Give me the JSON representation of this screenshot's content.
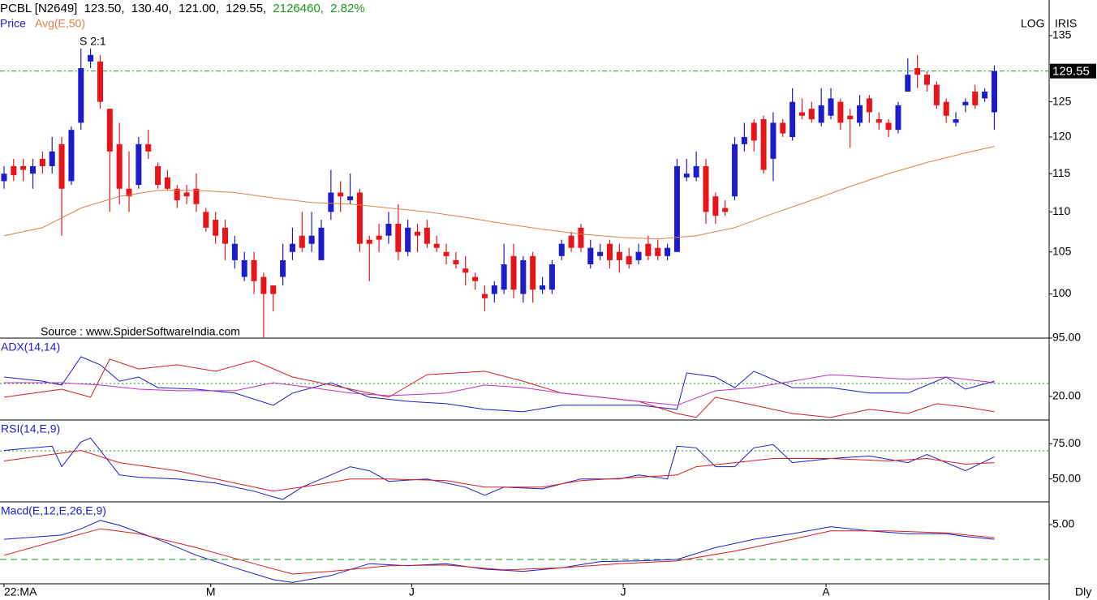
{
  "header": {
    "symbol": "PCBL [N2649]",
    "open": "123.50,",
    "high": "130.40,",
    "low": "121.00,",
    "close": "129.55,",
    "volume": "2126460,",
    "change": "2.82%",
    "scale": "LOG",
    "brand": "IRIS",
    "period": "Dly",
    "source": "Source : www.SpiderSoftwareIndia.com",
    "annotation": "S 2:1"
  },
  "chart_data": [
    {
      "type": "candlestick",
      "name": "Price",
      "log": true,
      "up_color": "#1c1ccc",
      "down_color": "#e8141a",
      "xlim": [
        -0.42,
        108.7
      ],
      "ylim": [
        95,
        140.7
      ],
      "yticks": [
        135,
        125,
        120,
        115,
        110,
        105,
        100,
        {
          "value": 95,
          "label": "95.00"
        }
      ],
      "xticks": [
        {
          "value": 0,
          "label": "22:MA"
        },
        {
          "value": 21.5,
          "label": "M"
        },
        {
          "value": 42.4,
          "label": "J"
        },
        {
          "value": 64.4,
          "label": "J"
        },
        {
          "value": 85.5,
          "label": "A"
        }
      ],
      "open": [
        114,
        116,
        116,
        115,
        117,
        116,
        119,
        114,
        122,
        131,
        131,
        124,
        119,
        113,
        113.5,
        119,
        116,
        114.5,
        113,
        112.5,
        113,
        110,
        109,
        108,
        104,
        102,
        104,
        102,
        101,
        102,
        105,
        107,
        106,
        104,
        110,
        112.5,
        111.5,
        112.5,
        106.5,
        107,
        107,
        108.5,
        105,
        107.5,
        108,
        106,
        105,
        104,
        103,
        102,
        100,
        100,
        100.5,
        104.5,
        100,
        104.5,
        100.5,
        100.5,
        104.5,
        107,
        108,
        103.5,
        104.5,
        106,
        105,
        104.5,
        104,
        106,
        105.5,
        104.5,
        105,
        114.5,
        114.5,
        116,
        112,
        110.5,
        112,
        119,
        122,
        122.5,
        117,
        122,
        120,
        123.5,
        124,
        122,
        123,
        125,
        123,
        122,
        125.5,
        122.5,
        122,
        121,
        126.5,
        130,
        129,
        127.5,
        125,
        122,
        124.5,
        126.5,
        125.5,
        123.5
      ],
      "high": [
        116,
        117,
        117,
        117,
        118,
        120,
        120,
        121.5,
        133,
        133,
        132,
        124,
        122,
        118,
        120,
        121,
        116.5,
        115.5,
        113.5,
        113.5,
        115,
        110.5,
        110,
        109,
        107,
        105,
        105,
        102.5,
        101,
        106,
        108,
        110,
        110,
        109,
        115.5,
        114,
        115,
        113,
        107,
        108.5,
        110,
        111,
        109,
        108.5,
        109,
        107,
        106,
        105,
        104.5,
        102.5,
        101,
        101.5,
        106,
        106,
        104.5,
        105,
        102,
        104,
        106.5,
        107.5,
        108.5,
        106.5,
        106,
        106.5,
        106,
        105.5,
        106,
        107,
        106.5,
        106,
        117,
        117,
        118,
        117,
        112.5,
        111.5,
        120,
        122,
        122.5,
        123,
        123.5,
        122.5,
        127,
        125.5,
        125,
        127,
        127,
        125.5,
        124,
        126,
        126,
        123.5,
        122.5,
        125,
        131.5,
        132,
        129.5,
        128,
        125.5,
        123.5,
        125.5,
        127.5,
        127,
        130.4
      ],
      "low": [
        113,
        114,
        114,
        113,
        115,
        115,
        107,
        113.5,
        121,
        130,
        124,
        110,
        111,
        110,
        113,
        117,
        113,
        112.8,
        110.5,
        111,
        110,
        107.5,
        106,
        104,
        103,
        101.5,
        100,
        95,
        98,
        101,
        104,
        105,
        105,
        104,
        109,
        110,
        111,
        105,
        101.5,
        105,
        106,
        104,
        104.5,
        105,
        105.5,
        105,
        103.5,
        103,
        101,
        100.5,
        98,
        99,
        100,
        99.5,
        99,
        99,
        100,
        100,
        104,
        105,
        105,
        103,
        104,
        103,
        102.5,
        103,
        103.5,
        104,
        104,
        104,
        105,
        114,
        114,
        108.5,
        108.5,
        109.5,
        111.5,
        118,
        118,
        115,
        114,
        120,
        119.5,
        122.5,
        122,
        121.5,
        122.5,
        121,
        118.5,
        121.5,
        122,
        121,
        120,
        120.5,
        126.5,
        127,
        126.5,
        124,
        122,
        121.5,
        123.5,
        124,
        125,
        121
      ],
      "close": [
        115,
        114.8,
        115.5,
        116,
        116,
        118,
        113,
        121,
        130,
        132,
        125,
        118,
        113,
        112,
        119,
        118,
        113.5,
        113,
        111.5,
        112,
        111,
        108,
        107,
        106,
        106,
        104,
        101.5,
        100,
        100,
        104,
        106,
        105.5,
        107,
        108,
        112.5,
        112,
        112,
        106,
        106,
        106.5,
        108.5,
        105,
        108,
        107,
        106,
        105.5,
        104.5,
        103.5,
        102.5,
        101.5,
        99.5,
        101,
        103.5,
        100.5,
        104,
        100.5,
        101,
        103.5,
        106,
        105.5,
        105.5,
        105.5,
        105,
        104,
        104,
        103.5,
        105,
        104.5,
        104.5,
        105.5,
        116,
        115,
        116,
        110,
        109.5,
        110,
        119,
        120,
        119.5,
        115.5,
        122,
        120.5,
        125,
        123,
        122.5,
        124.5,
        125.5,
        122,
        122.5,
        124.5,
        123.5,
        122,
        121,
        124.5,
        129,
        129,
        127.5,
        124.5,
        123,
        122.5,
        125,
        124.5,
        126.5,
        129.55
      ],
      "series": [
        {
          "name": "Avg(E,50)",
          "color": "#e0804a",
          "x": [
            0,
            4,
            8,
            12,
            16,
            20,
            24,
            28,
            32,
            36,
            40,
            44,
            48,
            52,
            56,
            60,
            64,
            68,
            72,
            76,
            80,
            84,
            88,
            92,
            96,
            100,
            103
          ],
          "values": [
            107,
            108,
            110.5,
            112,
            112.8,
            112.8,
            112.5,
            111.8,
            111.2,
            111,
            110.5,
            110,
            109.3,
            108.5,
            107.8,
            107.2,
            106.8,
            106.6,
            107,
            108,
            109.8,
            111.5,
            113.3,
            115,
            116.5,
            117.8,
            118.7
          ]
        }
      ]
    },
    {
      "type": "line",
      "title": "ADX(14,14)",
      "xlim": [
        -0.42,
        108.7
      ],
      "ylim": [
        10.9,
        42.2
      ],
      "yticks": [
        {
          "value": 20,
          "label": "20.00"
        }
      ],
      "ref_line": 25,
      "ref_color": "#1a9a1a",
      "series": [
        {
          "color": "#1c1ccc",
          "x": [
            0,
            4,
            6,
            8,
            10,
            12,
            14,
            16,
            20,
            24,
            28,
            30,
            34,
            38,
            42,
            46,
            50,
            54,
            58,
            62,
            66,
            70,
            71,
            74,
            76,
            78,
            82,
            86,
            90,
            94,
            98,
            100,
            103
          ],
          "values": [
            27.5,
            25.9,
            24.4,
            35.3,
            32.2,
            25.9,
            27.5,
            23.4,
            22.8,
            21.3,
            16.6,
            21.3,
            25.3,
            19.7,
            18.1,
            17.2,
            15,
            14.1,
            16.6,
            16.6,
            16.6,
            15,
            29.1,
            27.5,
            23.4,
            29.7,
            23.4,
            23.4,
            21.3,
            21.3,
            27.5,
            22.8,
            25.9
          ]
        },
        {
          "color": "#d42020",
          "x": [
            0,
            6,
            9,
            11,
            14,
            18,
            22,
            26,
            30,
            34,
            38,
            40,
            44,
            50,
            54,
            58,
            62,
            66,
            70,
            72,
            74,
            78,
            82,
            86,
            90,
            94,
            97,
            100,
            103
          ],
          "values": [
            19.7,
            22.8,
            19.7,
            34.4,
            30.6,
            32.2,
            29.7,
            33.8,
            27.5,
            24.4,
            21.3,
            19.7,
            28.4,
            29.7,
            25.9,
            21.3,
            19.7,
            18.1,
            13.4,
            11.9,
            19.7,
            16.6,
            13.4,
            11.9,
            15,
            13.4,
            17.2,
            15.9,
            14.1
          ]
        },
        {
          "color": "#c030c0",
          "x": [
            0,
            6,
            10,
            14,
            18,
            24,
            28,
            32,
            36,
            40,
            46,
            50,
            54,
            58,
            62,
            66,
            70,
            74,
            78,
            82,
            86,
            90,
            94,
            98,
            103
          ],
          "values": [
            25.3,
            25.3,
            24.4,
            22.8,
            22.2,
            22.2,
            25.3,
            23.4,
            21.3,
            20.3,
            21.3,
            24.4,
            23.4,
            21.3,
            19.7,
            18.1,
            16.6,
            22.2,
            23.4,
            25.9,
            28.4,
            27.5,
            26.6,
            27.5,
            25.3
          ]
        }
      ]
    },
    {
      "type": "line",
      "title": "RSI(14,E,9)",
      "xlim": [
        -0.42,
        108.7
      ],
      "ylim": [
        33.7,
        91.3
      ],
      "yticks": [
        {
          "value": 75,
          "label": "75.00"
        },
        {
          "value": 50,
          "label": "50.00"
        }
      ],
      "ref_line": 70,
      "ref_color": "#1a9a1a",
      "series": [
        {
          "color": "#1c1ccc",
          "x": [
            0,
            5,
            6,
            8,
            9,
            12,
            14,
            18,
            22,
            26,
            28,
            29,
            31,
            34,
            36,
            38,
            40,
            44,
            48,
            50,
            52,
            56,
            60,
            64,
            66,
            69,
            70,
            72,
            74,
            76,
            78,
            80,
            82,
            86,
            90,
            94,
            96,
            98,
            100,
            103
          ],
          "values": [
            70.3,
            73.3,
            58.7,
            76.2,
            79.1,
            52.9,
            51.2,
            50,
            47.1,
            41.3,
            37.2,
            35.5,
            44.2,
            52.9,
            58.7,
            55.8,
            48.3,
            50,
            44.2,
            38.4,
            44.2,
            43,
            50,
            50,
            52.9,
            50,
            73.3,
            72.1,
            58.7,
            58.7,
            72.1,
            74.4,
            61.6,
            64.5,
            66.3,
            61.6,
            67.4,
            61.6,
            55.8,
            65.7
          ]
        },
        {
          "color": "#d42020",
          "x": [
            0,
            8,
            12,
            18,
            24,
            28,
            32,
            36,
            40,
            46,
            50,
            56,
            60,
            66,
            70,
            72,
            76,
            80,
            86,
            92,
            96,
            100,
            103
          ],
          "values": [
            62.8,
            70.3,
            61.6,
            55.8,
            47.1,
            41.3,
            45.3,
            50,
            50,
            48.8,
            44.2,
            44.2,
            48.8,
            51.2,
            52.9,
            58.7,
            61.6,
            64.5,
            64.5,
            62.8,
            64.5,
            60.5,
            61.6
          ]
        }
      ]
    },
    {
      "type": "line",
      "title": "Macd(E,12,E,26,E,9)",
      "xlim": [
        -0.42,
        108.7
      ],
      "ylim": [
        -3.49,
        8.14
      ],
      "yticks": [
        {
          "value": 5,
          "label": "5.00"
        }
      ],
      "ref_line": 0,
      "ref_color": "#1a9a1a",
      "series": [
        {
          "color": "#1c1ccc",
          "x": [
            0,
            6,
            8,
            10,
            12,
            16,
            20,
            24,
            28,
            30,
            34,
            38,
            42,
            46,
            50,
            54,
            58,
            62,
            66,
            70,
            74,
            78,
            82,
            86,
            90,
            94,
            98,
            100,
            103
          ],
          "values": [
            2.9,
            3.5,
            4.4,
            5.6,
            4.9,
            2.9,
            0.6,
            -1.2,
            -2.9,
            -3.3,
            -2.3,
            -0.6,
            -0.9,
            -0.6,
            -1.4,
            -1.7,
            -1.2,
            -0.3,
            -0.2,
            0,
            1.7,
            2.9,
            3.7,
            4.7,
            4.1,
            3.7,
            3.7,
            3.3,
            2.9
          ]
        },
        {
          "color": "#d42020",
          "x": [
            0,
            6,
            10,
            14,
            20,
            26,
            30,
            34,
            40,
            46,
            52,
            58,
            64,
            70,
            76,
            82,
            86,
            92,
            98,
            103
          ],
          "values": [
            0.6,
            2.9,
            4.4,
            3.7,
            1.7,
            -0.6,
            -2.1,
            -1.7,
            -0.9,
            -0.8,
            -1.5,
            -1.2,
            -0.6,
            -0.2,
            1.2,
            2.9,
            4.1,
            4.1,
            3.8,
            3.1
          ]
        }
      ]
    }
  ]
}
